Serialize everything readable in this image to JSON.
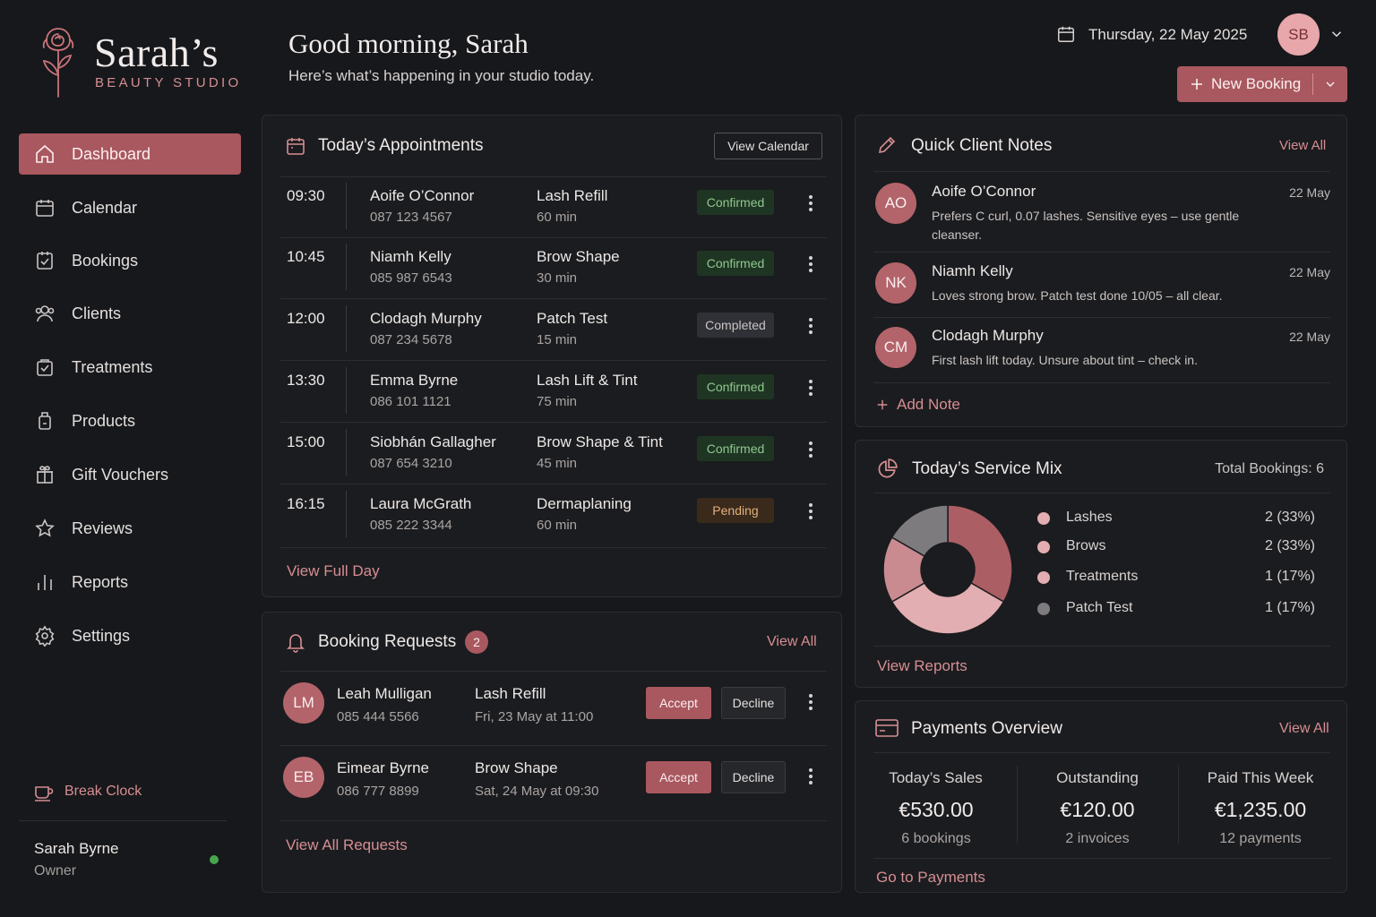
{
  "brand": {
    "name": "Sarah’s",
    "subtitle": "BEAUTY STUDIO"
  },
  "nav": [
    {
      "label": "Dashboard",
      "icon": "home-icon",
      "active": true
    },
    {
      "label": "Calendar",
      "icon": "calendar-icon"
    },
    {
      "label": "Bookings",
      "icon": "check-square-icon"
    },
    {
      "label": "Clients",
      "icon": "users-icon"
    },
    {
      "label": "Treatments",
      "icon": "bag-check-icon"
    },
    {
      "label": "Products",
      "icon": "bottle-icon"
    },
    {
      "label": "Gift Vouchers",
      "icon": "gift-icon"
    },
    {
      "label": "Reviews",
      "icon": "star-icon"
    },
    {
      "label": "Reports",
      "icon": "bar-chart-icon"
    },
    {
      "label": "Settings",
      "icon": "gear-icon"
    }
  ],
  "break_clock": "Break Clock",
  "user": {
    "name": "Sarah Byrne",
    "role": "Owner",
    "initials": "SB"
  },
  "header": {
    "greeting": "Good morning, Sarah",
    "subtitle": "Here’s what’s happening in your studio today.",
    "date": "Thursday, 22 May 2025",
    "new_booking": "New Booking"
  },
  "appointments": {
    "title": "Today’s Appointments",
    "view_calendar": "View Calendar",
    "view_full_day": "View Full Day",
    "rows": [
      {
        "time": "09:30",
        "name": "Aoife O’Connor",
        "phone": "087 123 4567",
        "service": "Lash Refill",
        "duration": "60 min",
        "status": "Confirmed"
      },
      {
        "time": "10:45",
        "name": "Niamh Kelly",
        "phone": "085 987 6543",
        "service": "Brow Shape",
        "duration": "30 min",
        "status": "Confirmed"
      },
      {
        "time": "12:00",
        "name": "Clodagh Murphy",
        "phone": "087 234 5678",
        "service": "Patch Test",
        "duration": "15 min",
        "status": "Completed"
      },
      {
        "time": "13:30",
        "name": "Emma Byrne",
        "phone": "086 101 1121",
        "service": "Lash Lift & Tint",
        "duration": "75 min",
        "status": "Confirmed"
      },
      {
        "time": "15:00",
        "name": "Siobhán Gallagher",
        "phone": "087 654 3210",
        "service": "Brow Shape & Tint",
        "duration": "45 min",
        "status": "Confirmed"
      },
      {
        "time": "16:15",
        "name": "Laura McGrath",
        "phone": "085 222 3344",
        "service": "Dermaplaning",
        "duration": "60 min",
        "status": "Pending"
      }
    ]
  },
  "requests": {
    "title": "Booking Requests",
    "count": "2",
    "view_all": "View All",
    "view_all_requests": "View All Requests",
    "accept_label": "Accept",
    "decline_label": "Decline",
    "rows": [
      {
        "initials": "LM",
        "name": "Leah Mulligan",
        "phone": "085 444 5566",
        "service": "Lash Refill",
        "when": "Fri, 23 May at 11:00"
      },
      {
        "initials": "EB",
        "name": "Eimear Byrne",
        "phone": "086 777 8899",
        "service": "Brow Shape",
        "when": "Sat, 24 May at 09:30"
      }
    ]
  },
  "notes": {
    "title": "Quick Client Notes",
    "view_all": "View All",
    "add_note": "Add Note",
    "rows": [
      {
        "initials": "AO",
        "name": "Aoife O’Connor",
        "date": "22 May",
        "text": "Prefers C curl, 0.07 lashes. Sensitive eyes – use gentle cleanser."
      },
      {
        "initials": "NK",
        "name": "Niamh Kelly",
        "date": "22 May",
        "text": "Loves strong brow. Patch test done 10/05 – all clear."
      },
      {
        "initials": "CM",
        "name": "Clodagh Murphy",
        "date": "22 May",
        "text": "First lash lift today. Unsure about tint – check in."
      }
    ]
  },
  "service_mix": {
    "title": "Today’s Service Mix",
    "total": "Total Bookings: 6",
    "view_reports": "View Reports",
    "items": [
      {
        "label": "Lashes",
        "value": "2 (33%)",
        "count": 2,
        "color": "#ab5e64"
      },
      {
        "label": "Brows",
        "value": "2 (33%)",
        "count": 2,
        "color": "#e2aeb1"
      },
      {
        "label": "Treatments",
        "value": "1 (17%)",
        "count": 1,
        "color": "#c98b90"
      },
      {
        "label": "Patch Test",
        "value": "1 (17%)",
        "count": 1,
        "color": "#7d7b7d"
      }
    ]
  },
  "payments": {
    "title": "Payments Overview",
    "view_all": "View All",
    "go_to": "Go to Payments",
    "cols": [
      {
        "label": "Today’s Sales",
        "value": "€530.00",
        "sub": "6 bookings"
      },
      {
        "label": "Outstanding",
        "value": "€120.00",
        "sub": "2 invoices"
      },
      {
        "label": "Paid This Week",
        "value": "€1,235.00",
        "sub": "12 payments"
      }
    ]
  },
  "colors": {
    "accent": "#a9585f",
    "accent_light": "#d58e93",
    "bg": "#17181b",
    "card": "#1b1c1f"
  }
}
